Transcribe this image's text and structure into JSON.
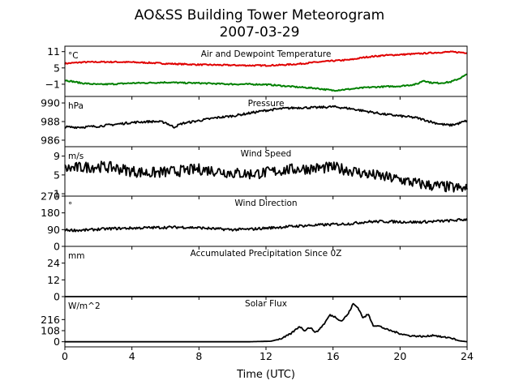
{
  "figure": {
    "title_line1": "AO&SS Building Tower Meteorogram",
    "title_line2": "2007-03-29",
    "xlabel": "Time (UTC)"
  },
  "chart_data": [
    {
      "type": "line",
      "title": "Air and Dewpoint Temperature",
      "unit": "°C",
      "xlim": [
        0,
        24
      ],
      "ylim": [
        -5.5,
        13
      ],
      "yticks": [
        11,
        5,
        -1
      ],
      "ytick_labels": [
        "11",
        "5",
        "−1"
      ],
      "series": [
        {
          "color": "#e00000",
          "x": [
            0,
            1,
            2,
            3,
            4,
            5,
            6,
            7,
            8,
            9,
            10,
            11,
            12,
            13,
            14,
            15,
            16,
            17,
            18,
            19,
            20,
            21,
            22,
            23,
            24
          ],
          "y": [
            6.6,
            7.1,
            7.2,
            7.2,
            7.1,
            6.9,
            6.6,
            6.4,
            6.2,
            6.1,
            6.0,
            5.9,
            5.9,
            6.1,
            6.5,
            7.1,
            7.6,
            8.0,
            9.0,
            9.6,
            9.9,
            10.2,
            10.6,
            10.9,
            10.6
          ]
        },
        {
          "color": "#008000",
          "x": [
            0,
            1,
            2,
            3,
            4,
            5,
            6,
            7,
            8,
            9,
            10,
            11,
            12,
            13,
            14,
            15,
            16,
            17,
            18,
            19,
            20,
            21,
            21.4,
            21.8,
            22.3,
            23,
            23.5,
            24
          ],
          "y": [
            0.5,
            -0.6,
            -1.1,
            -0.9,
            -0.6,
            -0.5,
            -0.3,
            -0.5,
            -0.6,
            -0.8,
            -1.0,
            -1.0,
            -1.1,
            -1.6,
            -2.1,
            -2.5,
            -3.3,
            -2.8,
            -2.2,
            -1.9,
            -1.7,
            -1.0,
            0.4,
            -0.4,
            -0.6,
            -0.2,
            1.0,
            2.6
          ]
        }
      ]
    },
    {
      "type": "line",
      "title": "Pressure",
      "unit": "hPa",
      "xlim": [
        0,
        24
      ],
      "ylim": [
        985.3,
        990.7
      ],
      "yticks": [
        990,
        988,
        986
      ],
      "ytick_labels": [
        "990",
        "988",
        "986"
      ],
      "series": [
        {
          "color": "#000000",
          "x": [
            0,
            1,
            2,
            3,
            4,
            5,
            5.5,
            6,
            6.5,
            7,
            8,
            9,
            10,
            11,
            12,
            13,
            14,
            15,
            16,
            17,
            18,
            19,
            20,
            21,
            22,
            22.5,
            23,
            23.5,
            24
          ],
          "y": [
            987.4,
            987.4,
            987.5,
            987.7,
            987.9,
            988.0,
            988.0,
            987.9,
            987.4,
            987.8,
            988.1,
            988.4,
            988.6,
            988.9,
            989.2,
            989.4,
            989.5,
            989.5,
            989.6,
            989.4,
            989.1,
            988.8,
            988.6,
            988.4,
            987.9,
            987.7,
            987.6,
            987.8,
            988.1
          ]
        }
      ]
    },
    {
      "type": "line",
      "title": "Wind Speed",
      "unit": "m/s",
      "xlim": [
        0,
        24
      ],
      "ylim": [
        0.5,
        11
      ],
      "yticks": [
        9,
        5,
        1
      ],
      "ytick_labels": [
        "9",
        "5",
        "1"
      ],
      "series": [
        {
          "color": "#000000",
          "x": [
            0,
            1,
            2,
            3,
            4,
            5,
            6,
            7,
            8,
            9,
            10,
            11,
            12,
            13,
            14,
            15,
            16,
            17,
            18,
            19,
            20,
            21,
            22,
            23,
            24
          ],
          "y": [
            6.3,
            6.6,
            6.8,
            6.5,
            5.8,
            5.4,
            5.6,
            5.9,
            6.2,
            5.9,
            5.4,
            5.2,
            5.5,
            6.0,
            6.3,
            6.4,
            6.6,
            6.0,
            5.2,
            4.6,
            4.0,
            3.2,
            2.7,
            2.4,
            1.9
          ]
        }
      ]
    },
    {
      "type": "line",
      "title": "Wind Direction",
      "unit": "°",
      "xlim": [
        0,
        24
      ],
      "ylim": [
        0,
        270
      ],
      "yticks": [
        270,
        180,
        90,
        0
      ],
      "ytick_labels": [
        "270",
        "180",
        "90",
        "0"
      ],
      "series": [
        {
          "color": "#000000",
          "x": [
            0,
            1,
            2,
            3,
            4,
            5,
            6,
            7,
            8,
            9,
            10,
            11,
            12,
            13,
            14,
            15,
            16,
            17,
            18,
            19,
            20,
            21,
            22,
            23,
            24
          ],
          "y": [
            88,
            86,
            92,
            96,
            98,
            100,
            102,
            103,
            100,
            94,
            90,
            92,
            98,
            104,
            110,
            114,
            118,
            122,
            132,
            134,
            132,
            130,
            134,
            138,
            145
          ]
        }
      ]
    },
    {
      "type": "line",
      "title": "Accumulated Precipitation Since 0Z",
      "unit": "mm",
      "xlim": [
        0,
        24
      ],
      "ylim": [
        0,
        36
      ],
      "yticks": [
        24,
        12,
        0
      ],
      "ytick_labels": [
        "24",
        "12",
        "0"
      ],
      "series": [
        {
          "color": "#000000",
          "x": [
            0,
            24
          ],
          "y": [
            0,
            0
          ]
        }
      ]
    },
    {
      "type": "line",
      "title": "Solar Flux",
      "unit": "W/m^2",
      "xlim": [
        0,
        24
      ],
      "ylim": [
        -50,
        440
      ],
      "yticks": [
        216,
        108,
        0
      ],
      "ytick_labels": [
        "216",
        "108",
        "0"
      ],
      "series": [
        {
          "color": "#000000",
          "x": [
            0,
            6,
            11,
            12.3,
            13,
            13.5,
            14,
            14.3,
            14.6,
            15,
            15.5,
            15.8,
            16.1,
            16.5,
            16.9,
            17.2,
            17.5,
            17.8,
            18.1,
            18.4,
            18.8,
            19.2,
            19.6,
            20,
            20.5,
            21,
            21.5,
            22,
            22.5,
            23,
            23.5,
            24
          ],
          "y": [
            0,
            0,
            0,
            5,
            35,
            80,
            150,
            110,
            140,
            90,
            180,
            260,
            245,
            200,
            270,
            370,
            330,
            230,
            270,
            160,
            150,
            120,
            100,
            80,
            60,
            55,
            50,
            65,
            45,
            40,
            10,
            0
          ]
        }
      ]
    }
  ],
  "x_axis": {
    "ticks": [
      0,
      4,
      8,
      12,
      16,
      20,
      24
    ],
    "tick_labels": [
      "0",
      "4",
      "8",
      "12",
      "16",
      "20",
      "24"
    ]
  }
}
